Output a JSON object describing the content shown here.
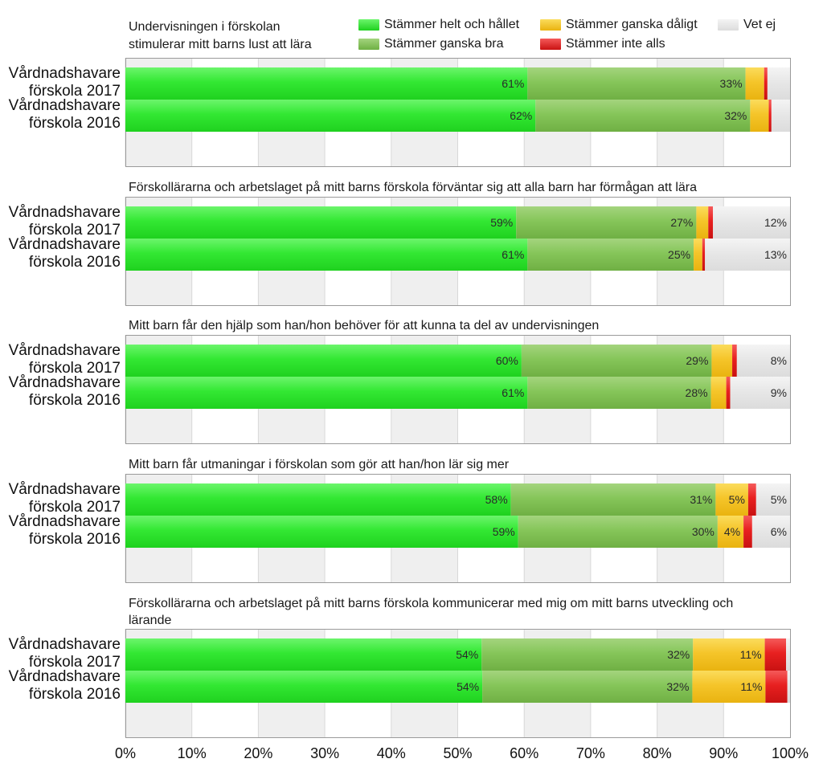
{
  "legend": [
    {
      "name": "Stämmer helt och hållet",
      "color": "#22e622"
    },
    {
      "name": "Stämmer ganska bra",
      "color": "#7dc24b"
    },
    {
      "name": "Stämmer ganska dåligt",
      "color": "#f3c01c"
    },
    {
      "name": "Stämmer inte alls",
      "color": "#e4161a"
    },
    {
      "name": "Vet ej",
      "color": "#e2e2e2"
    }
  ],
  "chart_data": {
    "type": "bar",
    "orientation": "horizontal",
    "stacked": true,
    "xlim": [
      0,
      100
    ],
    "x_ticks": [
      "0%",
      "10%",
      "20%",
      "30%",
      "40%",
      "50%",
      "60%",
      "70%",
      "80%",
      "90%",
      "100%"
    ],
    "series_names": [
      "Stämmer helt och hållet",
      "Stämmer ganska bra",
      "Stämmer ganska dåligt",
      "Stämmer inte alls",
      "Vet ej"
    ],
    "panels": [
      {
        "title": "Undervisningen i förskolan stimulerar mitt barns lust att lära",
        "title_lines": [
          "Undervisningen i förskolan",
          "stimulerar mitt barns lust att lära"
        ],
        "rows": [
          {
            "label_lines": [
              "Vårdnadshavare",
              "förskola 2017"
            ],
            "values": [
              60.5,
              32.8,
              2.8,
              0.5,
              3.4
            ],
            "labels": [
              "61%",
              "33%",
              "",
              "",
              ""
            ]
          },
          {
            "label_lines": [
              "Vårdnadshavare",
              "förskola 2016"
            ],
            "values": [
              61.7,
              32.3,
              2.8,
              0.4,
              2.8
            ],
            "labels": [
              "62%",
              "32%",
              "",
              "",
              ""
            ]
          }
        ]
      },
      {
        "title": "Förskollärarna och arbetslaget på mitt barns förskola förväntar sig att alla barn har förmågan att lära",
        "title_lines": [
          "Förskollärarna och arbetslaget på mitt barns förskola förväntar sig att alla barn har förmågan att lära"
        ],
        "rows": [
          {
            "label_lines": [
              "Vårdnadshavare",
              "förskola 2017"
            ],
            "values": [
              58.8,
              27.1,
              1.8,
              0.7,
              11.6
            ],
            "labels": [
              "59%",
              "27%",
              "",
              "",
              "12%"
            ]
          },
          {
            "label_lines": [
              "Vårdnadshavare",
              "förskola 2016"
            ],
            "values": [
              60.5,
              25.0,
              1.3,
              0.4,
              12.8
            ],
            "labels": [
              "61%",
              "25%",
              "",
              "",
              "13%"
            ]
          }
        ]
      },
      {
        "title": "Mitt barn får den hjälp som han/hon behöver för att kunna ta del av undervisningen",
        "title_lines": [
          "Mitt barn får den hjälp som han/hon behöver för att kunna ta del av undervisningen"
        ],
        "rows": [
          {
            "label_lines": [
              "Vårdnadshavare",
              "förskola 2017"
            ],
            "values": [
              59.6,
              28.6,
              3.1,
              0.7,
              8.0
            ],
            "labels": [
              "60%",
              "29%",
              "",
              "",
              "8%"
            ]
          },
          {
            "label_lines": [
              "Vårdnadshavare",
              "förskola 2016"
            ],
            "values": [
              60.5,
              27.6,
              2.3,
              0.6,
              9.0
            ],
            "labels": [
              "61%",
              "28%",
              "",
              "",
              "9%"
            ]
          }
        ]
      },
      {
        "title": "Mitt barn får utmaningar i förskolan som gör att han/hon lär sig mer",
        "title_lines": [
          "Mitt barn får utmaningar i förskolan som gör att han/hon lär sig mer"
        ],
        "rows": [
          {
            "label_lines": [
              "Vårdnadshavare",
              "förskola 2017"
            ],
            "values": [
              58.0,
              30.8,
              4.9,
              1.2,
              5.1
            ],
            "labels": [
              "58%",
              "31%",
              "5%",
              "",
              "5%"
            ]
          },
          {
            "label_lines": [
              "Vårdnadshavare",
              "förskola 2016"
            ],
            "values": [
              59.1,
              30.0,
              3.9,
              1.3,
              5.7
            ],
            "labels": [
              "59%",
              "30%",
              "4%",
              "",
              "6%"
            ]
          }
        ]
      },
      {
        "title": "Förskollärarna och arbetslaget på mitt barns förskola kommunicerar med mig om mitt barns utveckling och lärande",
        "title_lines": [
          "Förskollärarna och arbetslaget på mitt barns förskola kommunicerar med mig om mitt barns utveckling och",
          "lärande"
        ],
        "rows": [
          {
            "label_lines": [
              "Vårdnadshavare",
              "förskola 2017"
            ],
            "values": [
              53.6,
              31.8,
              10.8,
              3.2,
              0.6
            ],
            "labels": [
              "54%",
              "32%",
              "11%",
              "",
              ""
            ]
          },
          {
            "label_lines": [
              "Vårdnadshavare",
              "förskola 2016"
            ],
            "values": [
              53.7,
              31.6,
              11.0,
              3.3,
              0.4
            ],
            "labels": [
              "54%",
              "32%",
              "11%",
              "",
              ""
            ]
          }
        ]
      }
    ]
  }
}
